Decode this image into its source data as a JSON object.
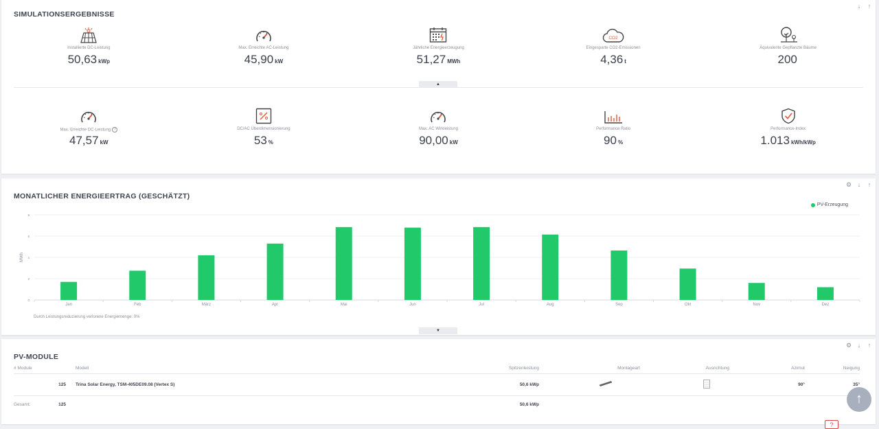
{
  "simulation": {
    "title": "SIMULATIONSERGEBNISSE",
    "row1": [
      {
        "icon": "solar-panel-icon",
        "label": "Installierte DC-Leistung",
        "value": "50,63",
        "unit": "kWp"
      },
      {
        "icon": "gauge-icon",
        "label": "Max. Erreichte AC-Leistung",
        "value": "45,90",
        "unit": "kW"
      },
      {
        "icon": "calendar-energy-icon",
        "label": "Jährliche Energieerzeugung",
        "value": "51,27",
        "unit": "MWh"
      },
      {
        "icon": "co2-cloud-icon",
        "label": "Eingesparte CO2-Emissionen",
        "value": "4,36",
        "unit": "t"
      },
      {
        "icon": "tree-icon",
        "label": "Äquivalente Gepflanzte Bäume",
        "value": "200",
        "unit": ""
      }
    ],
    "row2": [
      {
        "icon": "gauge-icon",
        "label": "Max. Erreichte DC-Leistung",
        "value": "47,57",
        "unit": "kW",
        "help": "?"
      },
      {
        "icon": "percent-box-icon",
        "label": "DC/AC Überdimensionierung",
        "value": "53",
        "unit": "%"
      },
      {
        "icon": "gauge-icon",
        "label": "Max. AC Wirkleistung",
        "value": "90,00",
        "unit": "kW"
      },
      {
        "icon": "bar-chart-icon",
        "label": "Performance Ratio",
        "value": "90",
        "unit": "%"
      },
      {
        "icon": "shield-check-icon",
        "label": "Performance-Index",
        "value": "1.013",
        "unit": "kWh/kWp"
      }
    ],
    "collapse_glyph": "▲"
  },
  "monthly": {
    "title": "MONATLICHER ENERGIEERTRAG (GESCHÄTZT)",
    "note": "Durch Leistungsreduzierung verlorene Energiemenge: 0%",
    "expand_glyph": "▼"
  },
  "chart_data": {
    "type": "bar",
    "categories": [
      "Jan",
      "Feb",
      "März",
      "Apr",
      "Mai",
      "Jun",
      "Jul",
      "Aug",
      "Sep",
      "Okt",
      "Nov",
      "Dez"
    ],
    "series": [
      {
        "name": "PV-Erzeugung",
        "values": [
          1.7,
          2.75,
          4.2,
          5.3,
          6.85,
          6.8,
          6.85,
          6.15,
          4.65,
          2.95,
          1.6,
          1.2
        ]
      }
    ],
    "ylabel": "MWh",
    "yticks": [
      "0",
      "2",
      "4",
      "6",
      "8"
    ],
    "ylim": [
      0,
      8
    ],
    "grid": true,
    "legend": "top-right",
    "color": "#22c96b"
  },
  "modules": {
    "title": "PV-MODULE",
    "headers": [
      "# Module",
      "Modell",
      "Spitzenleistung",
      "Montageart",
      "Ausrichtung",
      "Azimut",
      "Neigung"
    ],
    "row": {
      "count": "125",
      "model": "Trina Solar Energy, TSM-405DE09.08 (Vertex S)",
      "peak": "50,6 kWp",
      "azimut": "90°",
      "neigung": "35°"
    },
    "total": {
      "label": "Gesamt:",
      "count": "125",
      "peak": "50,6 kWp"
    }
  },
  "controls": {
    "settings": "⚙",
    "down": "🡇",
    "up": "🡅"
  },
  "fab_glyph": "↑",
  "help_glyph": "?"
}
